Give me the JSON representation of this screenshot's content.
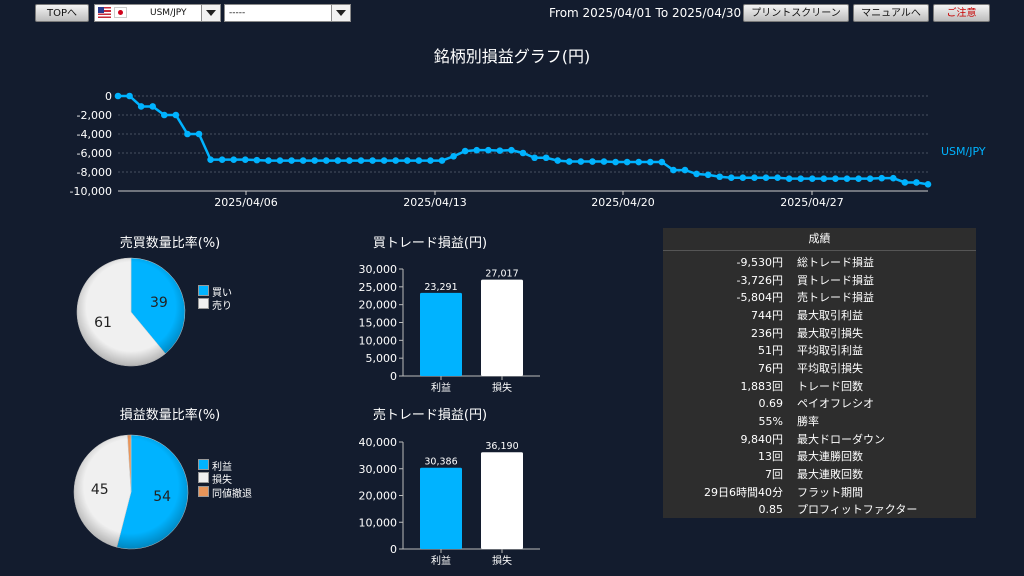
{
  "toolbar": {
    "top_button": "TOPへ",
    "pair_select": "USM/JPY",
    "second_select": "-----",
    "date_range": "From 2025/04/01 To 2025/04/30",
    "print_button": "プリントスクリーン",
    "manual_button": "マニュアルへ",
    "close_button": "ご注意"
  },
  "line_chart": {
    "title": "銘柄別損益グラフ(円)",
    "series_label": "USM/JPY",
    "y_ticks": [
      "0",
      "-2,000",
      "-4,000",
      "-6,000",
      "-8,000",
      "-10,000"
    ],
    "x_ticks": [
      "2025/04/06",
      "2025/04/13",
      "2025/04/20",
      "2025/04/27"
    ],
    "color": "#00b3ff"
  },
  "pie_trade_ratio": {
    "title": "売買数量比率(%)",
    "legend": [
      "買い",
      "売り"
    ],
    "values": [
      39,
      61
    ],
    "colors": [
      "#00b3ff",
      "#f0f0f0"
    ]
  },
  "pie_pl_ratio": {
    "title": "損益数量比率(%)",
    "legend": [
      "利益",
      "損失",
      "同値撤退"
    ],
    "values": [
      54,
      45,
      1
    ],
    "colors": [
      "#00b3ff",
      "#f0f0f0",
      "#e8955a"
    ]
  },
  "bar_buy": {
    "title": "買トレード損益(円)",
    "categories": [
      "利益",
      "損失"
    ],
    "values_label": [
      "23,291",
      "27,017"
    ],
    "y_ticks": [
      "30,000",
      "25,000",
      "20,000",
      "15,000",
      "10,000",
      "5,000",
      "0"
    ]
  },
  "bar_sell": {
    "title": "売トレード損益(円)",
    "categories": [
      "利益",
      "損失"
    ],
    "values_label": [
      "30,386",
      "36,190"
    ],
    "y_ticks": [
      "40,000",
      "30,000",
      "20,000",
      "10,000",
      "0"
    ]
  },
  "stats": {
    "header": "成績",
    "rows": [
      {
        "value": "-9,530円",
        "label": "総トレード損益"
      },
      {
        "value": "-3,726円",
        "label": "買トレード損益"
      },
      {
        "value": "-5,804円",
        "label": "売トレード損益"
      },
      {
        "value": "744円",
        "label": "最大取引利益"
      },
      {
        "value": "236円",
        "label": "最大取引損失"
      },
      {
        "value": "51円",
        "label": "平均取引利益"
      },
      {
        "value": "76円",
        "label": "平均取引損失"
      },
      {
        "value": "1,883回",
        "label": "トレード回数"
      },
      {
        "value": "0.69",
        "label": "ペイオフレシオ"
      },
      {
        "value": "55%",
        "label": "勝率"
      },
      {
        "value": "9,840円",
        "label": "最大ドローダウン"
      },
      {
        "value": "13回",
        "label": "最大連勝回数"
      },
      {
        "value": "7回",
        "label": "最大連敗回数"
      },
      {
        "value": "29日6時間40分",
        "label": "フラット期間"
      },
      {
        "value": "0.85",
        "label": "プロフィットファクター"
      }
    ]
  },
  "chart_data": [
    {
      "type": "line",
      "title": "銘柄別損益グラフ(円)",
      "series": [
        {
          "name": "USM/JPY",
          "values": [
            0,
            0,
            -1100,
            -1100,
            -2000,
            -2000,
            -4000,
            -4000,
            -6700,
            -6700,
            -6700,
            -6700,
            -6750,
            -6800,
            -6800,
            -6800,
            -6800,
            -6800,
            -6800,
            -6800,
            -6800,
            -6800,
            -6800,
            -6800,
            -6800,
            -6800,
            -6800,
            -6800,
            -6800,
            -6350,
            -5800,
            -5700,
            -5700,
            -5750,
            -5700,
            -6000,
            -6500,
            -6500,
            -6800,
            -6900,
            -6900,
            -6900,
            -6900,
            -6950,
            -6950,
            -6950,
            -6950,
            -6950,
            -7800,
            -7800,
            -8200,
            -8300,
            -8500,
            -8600,
            -8600,
            -8600,
            -8600,
            -8600,
            -8700,
            -8700,
            -8700,
            -8700,
            -8700,
            -8700,
            -8700,
            -8700,
            -8650,
            -8650,
            -9100,
            -9100,
            -9300
          ]
        }
      ],
      "x_ticks": [
        "2025/04/06",
        "2025/04/13",
        "2025/04/20",
        "2025/04/27"
      ],
      "ylim": [
        -10000,
        0
      ]
    },
    {
      "type": "pie",
      "title": "売買数量比率(%)",
      "categories": [
        "買い",
        "売り"
      ],
      "values": [
        39,
        61
      ]
    },
    {
      "type": "pie",
      "title": "損益数量比率(%)",
      "categories": [
        "利益",
        "損失",
        "同値撤退"
      ],
      "values": [
        54,
        45,
        1
      ]
    },
    {
      "type": "bar",
      "title": "買トレード損益(円)",
      "categories": [
        "利益",
        "損失"
      ],
      "values": [
        23291,
        27017
      ],
      "ylim": [
        0,
        30000
      ]
    },
    {
      "type": "bar",
      "title": "売トレード損益(円)",
      "categories": [
        "利益",
        "損失"
      ],
      "values": [
        30386,
        36190
      ],
      "ylim": [
        0,
        40000
      ]
    }
  ]
}
